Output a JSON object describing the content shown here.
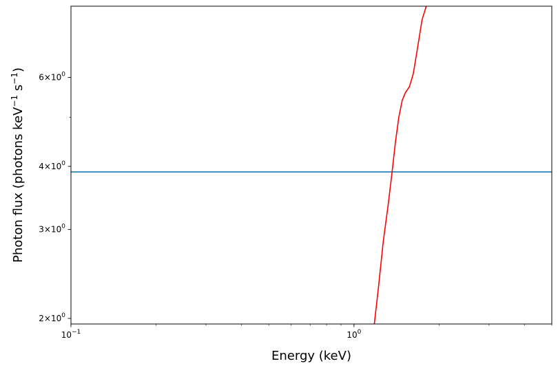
{
  "chart_data": {
    "type": "line",
    "xlabel": "Energy (keV)",
    "ylabel_main": "Photon flux (photons keV",
    "ylabel_sup1": "−1",
    "ylabel_mid": " s",
    "ylabel_sup2": "−1",
    "ylabel_end": ")",
    "x_scale": "log",
    "y_scale": "log",
    "xlim": [
      0.1,
      5.0
    ],
    "ylim": [
      1.95,
      8.3
    ],
    "grid": false,
    "legend": "none",
    "x_ticks": [
      {
        "value": 0.1,
        "base": "10",
        "exp": "−1"
      },
      {
        "value": 1.0,
        "base": "10",
        "exp": "0"
      }
    ],
    "y_ticks": [
      {
        "value": 2,
        "coef": "2×10",
        "exp": "0"
      },
      {
        "value": 3,
        "coef": "3×10",
        "exp": "0"
      },
      {
        "value": 4,
        "coef": "4×10",
        "exp": "0"
      },
      {
        "value": 6,
        "coef": "6×10",
        "exp": "0"
      }
    ],
    "series": [
      {
        "color": "#1f77b4",
        "x": [
          0.1,
          5.0
        ],
        "y": [
          3.9,
          3.9
        ]
      },
      {
        "color": "#ff0000",
        "x": [
          1.18,
          1.22,
          1.27,
          1.32,
          1.36,
          1.4,
          1.44,
          1.48,
          1.52,
          1.57,
          1.62,
          1.68,
          1.74,
          1.8
        ],
        "y": [
          1.95,
          2.3,
          2.85,
          3.35,
          3.85,
          4.45,
          5.0,
          5.4,
          5.6,
          5.75,
          6.1,
          6.9,
          7.8,
          8.3
        ]
      }
    ]
  }
}
